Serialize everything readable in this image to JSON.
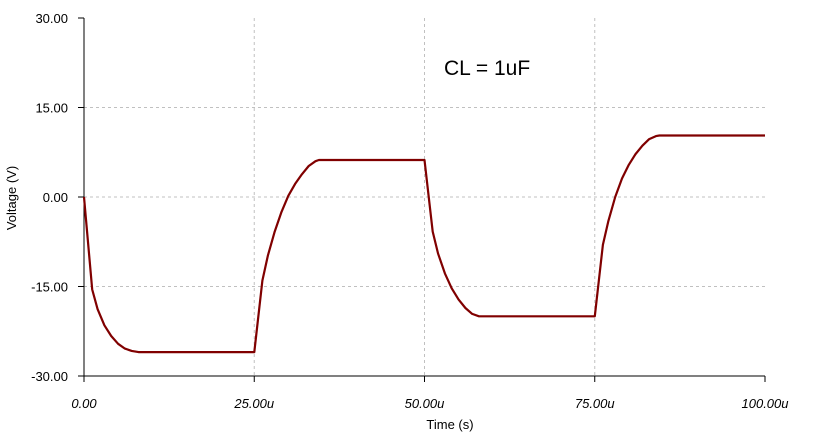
{
  "chart_data": {
    "type": "line",
    "title": "",
    "xlabel": "Time (s)",
    "ylabel": "Voltage (V)",
    "xlim": [
      0,
      100
    ],
    "ylim": [
      -30,
      30
    ],
    "grid": true,
    "x_ticks": [
      {
        "value": 0,
        "label": "0.00"
      },
      {
        "value": 25,
        "label": "25.00u"
      },
      {
        "value": 50,
        "label": "50.00u"
      },
      {
        "value": 75,
        "label": "75.00u"
      },
      {
        "value": 100,
        "label": "100.00u"
      }
    ],
    "y_ticks": [
      {
        "value": 30,
        "label": "30.00"
      },
      {
        "value": 15,
        "label": "15.00"
      },
      {
        "value": 0,
        "label": "0.00"
      },
      {
        "value": -15,
        "label": "-15.00"
      },
      {
        "value": -30,
        "label": "-30.00"
      }
    ],
    "annotation": "CL = 1uF",
    "series": [
      {
        "color": "#800000",
        "x": [
          0,
          1.2,
          2,
          3,
          4,
          5,
          6,
          7,
          8,
          8.5,
          25,
          26.2,
          27,
          28,
          29,
          30,
          31,
          32,
          33,
          34,
          34.5,
          50,
          51.2,
          52,
          53,
          54,
          55,
          56,
          57,
          58,
          58.5,
          75,
          76.2,
          77,
          78,
          79,
          80,
          81,
          82,
          83,
          84,
          84.5,
          100
        ],
        "y": [
          0,
          -15.5,
          -18.8,
          -21.5,
          -23.3,
          -24.6,
          -25.4,
          -25.8,
          -26,
          -26,
          -26,
          -14,
          -9.8,
          -5.8,
          -2.5,
          0.2,
          2.2,
          3.8,
          5.2,
          6,
          6.2,
          6.2,
          -5.8,
          -9.5,
          -12.8,
          -15.3,
          -17.2,
          -18.6,
          -19.6,
          -20,
          -20,
          -20,
          -8,
          -4,
          0,
          3.1,
          5.4,
          7.2,
          8.6,
          9.7,
          10.2,
          10.3,
          10.3
        ]
      }
    ]
  },
  "colors": {
    "background": "#ffffff",
    "grid": "#c0c0c0",
    "axis": "#000000",
    "trace": "#800000"
  }
}
